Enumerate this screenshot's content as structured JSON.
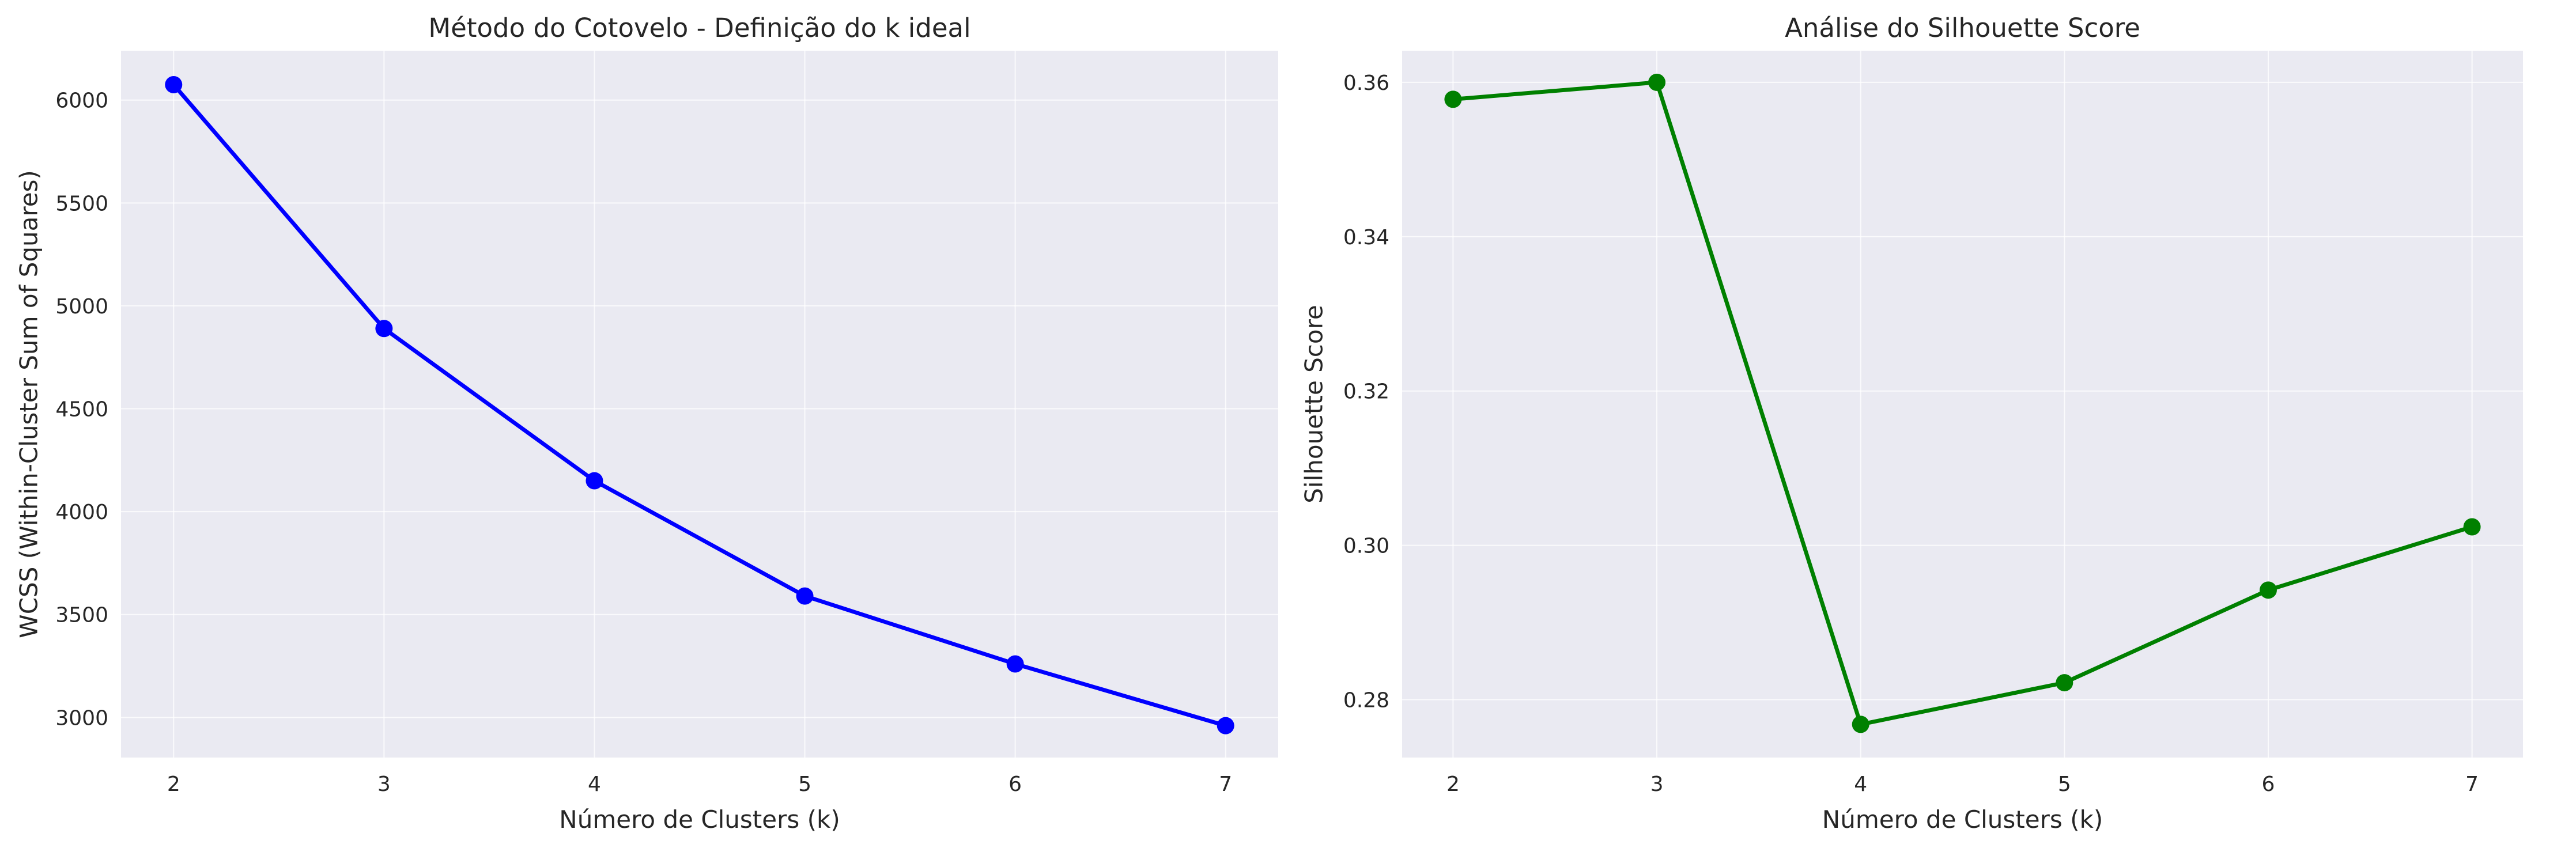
{
  "chart_data": [
    {
      "type": "line",
      "title": "Método do Cotovelo - Definição do k ideal",
      "xlabel": "Número de Clusters (k)",
      "ylabel": "WCSS (Within-Cluster Sum of Squares)",
      "x": [
        2,
        3,
        4,
        5,
        6,
        7
      ],
      "xticks": [
        "2",
        "3",
        "4",
        "5",
        "6",
        "7"
      ],
      "yticks": [
        "3000",
        "3500",
        "4000",
        "4500",
        "5000",
        "5500",
        "6000"
      ],
      "ytick_values": [
        3000,
        3500,
        4000,
        4500,
        5000,
        5500,
        6000
      ],
      "xlim": [
        1.75,
        7.25
      ],
      "ylim": [
        2805,
        6240
      ],
      "grid": true,
      "series": [
        {
          "values": [
            6075,
            4890,
            4150,
            3590,
            3260,
            2960
          ],
          "color": "#0000ff"
        }
      ]
    },
    {
      "type": "line",
      "title": "Análise do Silhouette Score",
      "xlabel": "Número de Clusters (k)",
      "ylabel": "Silhouette Score",
      "x": [
        2,
        3,
        4,
        5,
        6,
        7
      ],
      "xticks": [
        "2",
        "3",
        "4",
        "5",
        "6",
        "7"
      ],
      "yticks": [
        "0.28",
        "0.30",
        "0.32",
        "0.34",
        "0.36"
      ],
      "ytick_values": [
        0.28,
        0.3,
        0.32,
        0.34,
        0.36
      ],
      "xlim": [
        1.75,
        7.25
      ],
      "ylim": [
        0.2725,
        0.3641
      ],
      "grid": true,
      "series": [
        {
          "values": [
            0.3578,
            0.36,
            0.2768,
            0.2822,
            0.2942,
            0.3024
          ],
          "color": "#008000"
        }
      ]
    }
  ],
  "style": {
    "plot_bg": "#eaeaf2",
    "grid_color": "#ffffff",
    "text_color": "#262626"
  }
}
